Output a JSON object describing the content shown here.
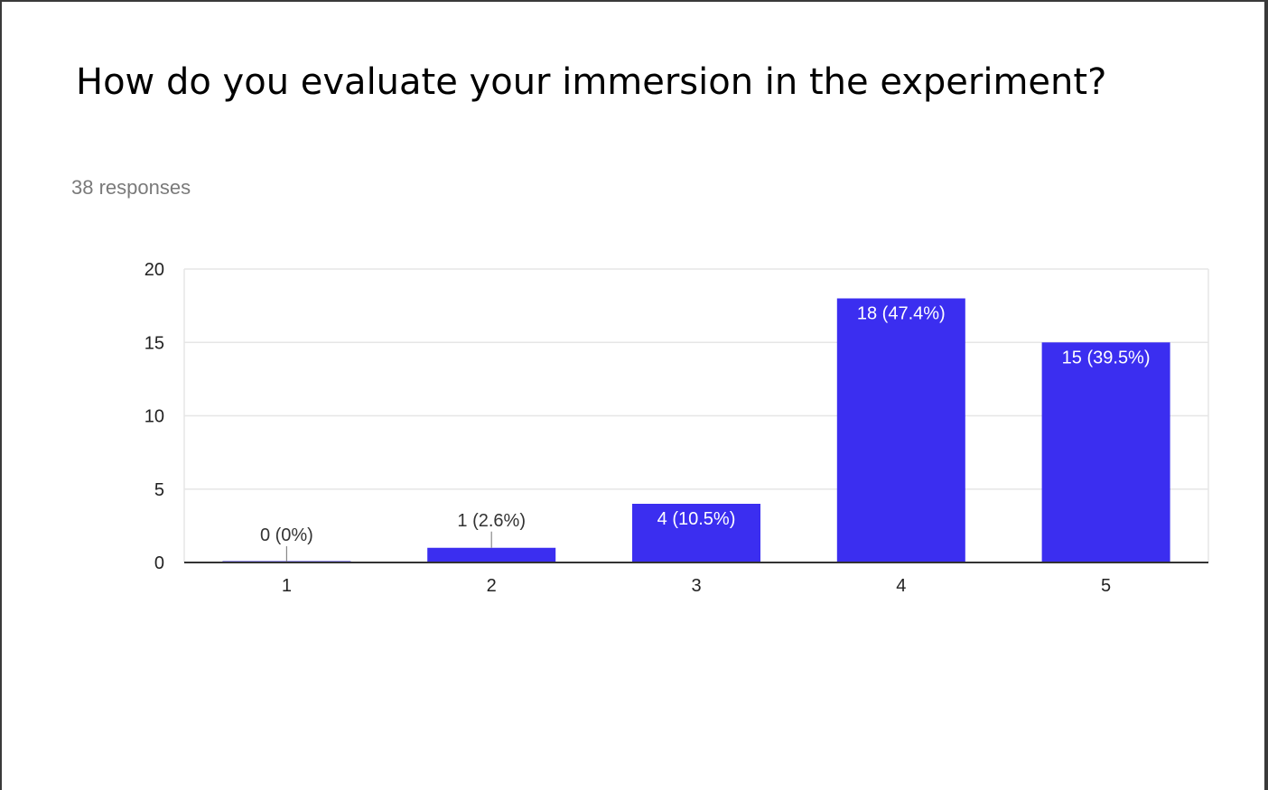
{
  "title": "How do you evaluate your immersion in the experiment?",
  "responses_label": "38 responses",
  "colors": {
    "bar": "#3b2ef0",
    "grid": "#e6e6e6",
    "axis": "#333333",
    "label_inside": "#ffffff",
    "label_outside": "#333333"
  },
  "chart_data": {
    "type": "bar",
    "title": "How do you evaluate your immersion in the experiment?",
    "xlabel": "",
    "ylabel": "",
    "categories": [
      "1",
      "2",
      "3",
      "4",
      "5"
    ],
    "values": [
      0,
      1,
      4,
      18,
      15
    ],
    "data_labels": [
      "0 (0%)",
      "1 (2.6%)",
      "4 (10.5%)",
      "18 (47.4%)",
      "15 (39.5%)"
    ],
    "ylim": [
      0,
      20
    ],
    "yticks": [
      "0",
      "5",
      "10",
      "15",
      "20"
    ],
    "grid": true,
    "legend": "none"
  }
}
